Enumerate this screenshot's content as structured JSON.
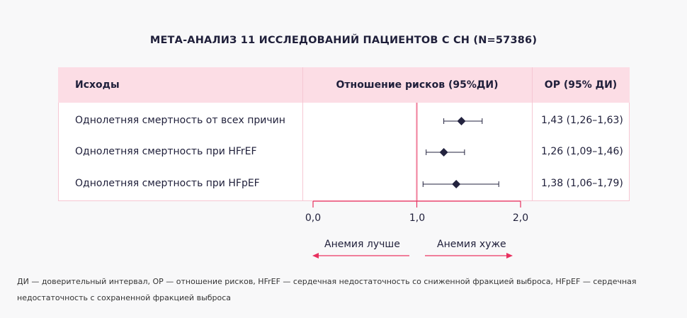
{
  "title": "МЕТА-АНАЛИЗ 11 ИССЛЕДОВАНИЙ ПАЦИЕНТОВ С СН (N=57386)",
  "headers": {
    "outcomes": "Исходы",
    "ratio": "Отношение рисков (95%ДИ)",
    "or": "ОР (95% ДИ)"
  },
  "chart_data": {
    "type": "forest",
    "title": "МЕТА-АНАЛИЗ 11 ИССЛЕДОВАНИЙ ПАЦИЕНТОВ С СН (N=57386)",
    "xlim": [
      0,
      2
    ],
    "xticks": [
      "0,0",
      "1,0",
      "2,0"
    ],
    "reference_line": 1.0,
    "rows": [
      {
        "label": "Однолетняя смертность от всех причин",
        "estimate": 1.43,
        "lower": 1.26,
        "upper": 1.63,
        "text": "1,43 (1,26–1,63)"
      },
      {
        "label": "Однолетняя смертность при HFrEF",
        "estimate": 1.26,
        "lower": 1.09,
        "upper": 1.46,
        "text": "1,26 (1,09–1,46)"
      },
      {
        "label": "Однолетняя смертность при HFpEF",
        "estimate": 1.38,
        "lower": 1.06,
        "upper": 1.79,
        "text": "1,38 (1,06–1,79)"
      }
    ],
    "direction_left": "Анемия лучше",
    "direction_right": "Анемия хуже"
  },
  "colors": {
    "accent": "#e8305f",
    "marker": "#23233f",
    "header_bg": "#fcdde5"
  },
  "footnote": [
    "ДИ — доверительный интервал, ОР — отношение рисков, HFrEF — сердечная недостаточность со сниженной фракцией выброса, HFpEF — сердечная",
    "недостаточность с сохраненной фракцией выброса"
  ]
}
